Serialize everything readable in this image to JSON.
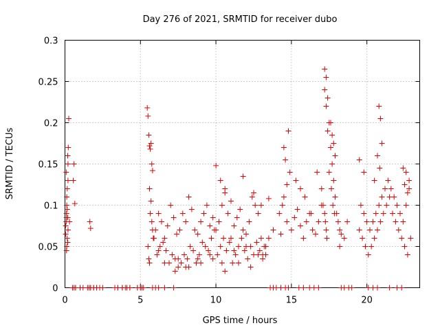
{
  "chart_data": {
    "type": "scatter",
    "title": "Day 276 of 2021, SRMTID for receiver dubo",
    "xlabel": "GPS time / hours",
    "ylabel": "SRMTID / TECUs",
    "xlim": [
      0,
      23.5
    ],
    "ylim": [
      0,
      0.3
    ],
    "xticks": [
      0,
      5,
      10,
      15,
      20
    ],
    "xtick_labels": [
      "0",
      "5",
      "10",
      "15",
      "20"
    ],
    "yticks": [
      0,
      0.05,
      0.1,
      0.15,
      0.2,
      0.25,
      0.3
    ],
    "ytick_labels": [
      "0",
      "0.05",
      "0.1",
      "0.15",
      "0.2",
      "0.25",
      "0.3"
    ],
    "grid": true,
    "legend": "none",
    "marker": "+",
    "color": "#e00000",
    "series": [
      {
        "name": "SRMTID",
        "x": [
          0.05,
          0.08,
          0.1,
          0.12,
          0.15,
          0.18,
          0.2,
          0.12,
          0.1,
          0.15,
          0.2,
          0.08,
          0.05,
          0.18,
          0.22,
          0.25,
          0.1,
          0.15,
          0.2,
          0.12,
          0.18,
          0.3,
          0.6,
          0.55,
          0.65,
          1.65,
          1.7,
          0.5,
          0.7,
          1.0,
          1.2,
          1.6,
          1.7,
          1.9,
          2.1,
          2.3,
          2.5,
          3.3,
          3.5,
          3.8,
          4.1,
          4.3,
          4.8,
          5.0,
          5.1,
          5.2,
          5.45,
          5.5,
          5.55,
          5.6,
          5.65,
          5.7,
          5.75,
          5.8,
          5.6,
          5.7,
          5.65,
          5.75,
          5.8,
          5.85,
          5.5,
          5.55,
          5.6,
          5.9,
          6.1,
          6.3,
          6.5,
          6.7,
          6.9,
          7.1,
          7.3,
          7.5,
          7.7,
          7.9,
          8.1,
          8.3,
          8.5,
          8.7,
          8.9,
          9.1,
          9.3,
          9.5,
          9.7,
          9.9,
          6.0,
          6.2,
          6.4,
          6.6,
          6.8,
          7.0,
          7.2,
          7.4,
          7.6,
          7.8,
          8.0,
          8.2,
          8.4,
          8.6,
          8.8,
          9.0,
          9.2,
          9.4,
          9.6,
          9.8,
          10.0,
          10.2,
          10.4,
          10.6,
          10.8,
          11.0,
          11.2,
          11.4,
          11.6,
          11.8,
          12.0,
          12.2,
          12.4,
          12.6,
          12.8,
          13.0,
          13.2,
          10.1,
          10.3,
          10.5,
          10.7,
          10.9,
          11.1,
          11.3,
          11.5,
          11.7,
          11.9,
          12.1,
          12.3,
          12.5,
          12.7,
          12.9,
          13.1,
          13.3,
          7.5,
          8.2,
          9.0,
          9.8,
          10.6,
          11.5,
          12.3,
          13.1,
          6.2,
          6.6,
          7.3,
          8.0,
          8.8,
          9.6,
          10.4,
          11.2,
          12.0,
          12.8,
          10.0,
          10.3,
          10.6,
          11.0,
          11.8,
          12.5,
          13.0,
          13.5,
          13.3,
          13.5,
          13.8,
          14.2,
          14.5,
          14.7,
          14.9,
          14.6,
          14.8,
          14.5,
          14.4,
          14.7,
          14.3,
          15.0,
          15.2,
          15.4,
          15.6,
          15.8,
          16.0,
          16.2,
          16.4,
          16.6,
          16.8,
          17.0,
          15.3,
          15.6,
          15.9,
          16.3,
          16.7,
          17.0,
          17.1,
          17.2,
          17.25,
          17.3,
          17.35,
          17.2,
          17.3,
          17.4,
          17.5,
          17.6,
          17.7,
          17.8,
          17.9,
          18.0,
          18.1,
          18.2,
          17.6,
          17.7,
          17.8,
          17.9,
          17.5,
          17.65,
          17.75,
          17.85,
          17.2,
          17.3,
          17.4,
          18.3,
          18.5,
          18.7,
          18.2,
          19.5,
          19.7,
          19.9,
          20.1,
          20.3,
          20.5,
          20.7,
          20.9,
          21.1,
          21.3,
          21.5,
          21.7,
          21.9,
          22.1,
          22.3,
          22.5,
          22.7,
          22.9,
          19.6,
          19.8,
          20.0,
          20.2,
          20.4,
          20.6,
          20.8,
          21.0,
          21.2,
          21.4,
          21.6,
          21.8,
          22.0,
          22.2,
          22.4,
          22.6,
          22.8,
          20.8,
          20.9,
          21.0,
          20.7,
          20.85,
          19.5,
          19.8,
          20.5,
          21.2,
          22.4,
          22.6,
          22.8,
          22.5,
          22.7,
          0.5,
          0.6,
          0.7,
          1.5,
          1.7,
          1.9,
          2.1,
          2.3,
          3.3,
          3.5,
          3.8,
          4.0,
          4.3,
          4.8,
          5.0,
          5.8,
          6.0,
          6.2,
          6.6,
          7.2,
          13.6,
          13.8,
          14.0,
          14.3,
          14.6,
          14.8,
          15.5,
          15.8,
          16.2,
          16.5,
          16.8,
          18.3,
          18.5,
          18.8,
          19.0,
          20.1,
          20.4,
          20.7,
          21.5,
          22.0,
          22.3
        ],
        "y": [
          0.065,
          0.08,
          0.09,
          0.1,
          0.06,
          0.055,
          0.07,
          0.05,
          0.045,
          0.12,
          0.13,
          0.14,
          0.075,
          0.16,
          0.17,
          0.205,
          0.085,
          0.095,
          0.15,
          0.11,
          0.085,
          0.08,
          0.15,
          0.13,
          0.102,
          0.08,
          0.072,
          0,
          0,
          0,
          0,
          0,
          0,
          0,
          0,
          0,
          0,
          0,
          0,
          0,
          0,
          0,
          0,
          0,
          0,
          0,
          0.218,
          0.208,
          0.185,
          0.172,
          0.168,
          0.175,
          0.15,
          0.142,
          0.12,
          0.105,
          0.09,
          0.08,
          0.07,
          0.06,
          0.05,
          0.035,
          0.03,
          0.06,
          0.04,
          0.05,
          0.055,
          0.045,
          0.03,
          0.04,
          0.035,
          0.025,
          0.03,
          0.04,
          0.035,
          0.05,
          0.045,
          0.03,
          0.04,
          0.055,
          0.05,
          0.045,
          0.06,
          0.07,
          0.07,
          0.09,
          0.08,
          0.06,
          0.075,
          0.1,
          0.085,
          0.065,
          0.07,
          0.09,
          0.08,
          0.11,
          0.095,
          0.07,
          0.065,
          0.08,
          0.09,
          0.1,
          0.075,
          0.085,
          0.07,
          0.08,
          0.1,
          0.115,
          0.09,
          0.06,
          0.075,
          0.085,
          0.095,
          0.07,
          0.065,
          0.08,
          0.11,
          0.1,
          0.09,
          0.06,
          0.05,
          0.04,
          0.05,
          0.06,
          0.045,
          0.055,
          0.03,
          0.04,
          0.05,
          0.06,
          0.045,
          0.035,
          0.05,
          0.04,
          0.055,
          0.045,
          0.035,
          0.05,
          0.035,
          0.025,
          0.03,
          0.035,
          0.02,
          0.03,
          0.025,
          0.04,
          0.045,
          0.03,
          0.02,
          0.025,
          0.035,
          0.04,
          0.03,
          0.045,
          0.05,
          0.04,
          0.148,
          0.13,
          0.12,
          0.105,
          0.135,
          0.115,
          0.1,
          0.108,
          0.04,
          0.06,
          0.07,
          0.09,
          0.11,
          0.125,
          0.14,
          0.155,
          0.19,
          0.17,
          0.1,
          0.08,
          0.065,
          0.07,
          0.085,
          0.095,
          0.075,
          0.06,
          0.08,
          0.09,
          0.07,
          0.065,
          0.08,
          0.1,
          0.13,
          0.12,
          0.11,
          0.09,
          0.14,
          0.12,
          0.1,
          0.09,
          0.08,
          0.07,
          0.06,
          0.265,
          0.255,
          0.23,
          0.2,
          0.17,
          0.15,
          0.13,
          0.11,
          0.09,
          0.08,
          0.07,
          0.2,
          0.185,
          0.175,
          0.16,
          0.14,
          0.12,
          0.1,
          0.09,
          0.24,
          0.22,
          0.19,
          0.065,
          0.06,
          0.08,
          0.05,
          0.07,
          0.06,
          0.05,
          0.04,
          0.05,
          0.06,
          0.07,
          0.08,
          0.09,
          0.1,
          0.11,
          0.09,
          0.08,
          0.07,
          0.06,
          0.05,
          0.04,
          0.06,
          0.1,
          0.09,
          0.08,
          0.07,
          0.08,
          0.09,
          0.1,
          0.11,
          0.12,
          0.13,
          0.12,
          0.11,
          0.1,
          0.09,
          0.08,
          0.1,
          0.12,
          0.22,
          0.205,
          0.175,
          0.16,
          0.145,
          0.155,
          0.14,
          0.13,
          0.12,
          0.145,
          0.14,
          0.13,
          0.125,
          0.115,
          0,
          0,
          0,
          0,
          0,
          0,
          0,
          0,
          0,
          0,
          0,
          0,
          0,
          0,
          0,
          0,
          0,
          0,
          0,
          0,
          0,
          0,
          0,
          0,
          0,
          0,
          0,
          0,
          0,
          0,
          0,
          0,
          0,
          0,
          0,
          0,
          0,
          0,
          0,
          0,
          0
        ]
      }
    ]
  }
}
